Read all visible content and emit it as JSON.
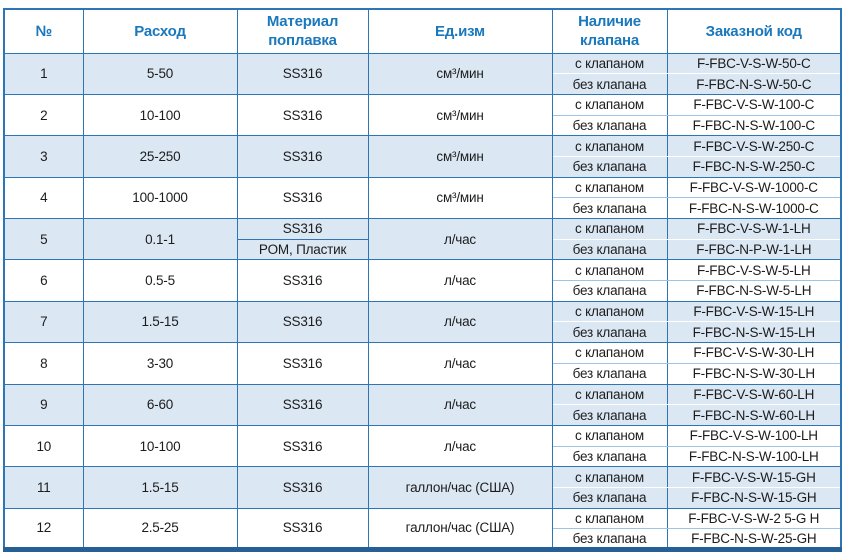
{
  "table": {
    "columns": [
      {
        "key": "num",
        "label": "№"
      },
      {
        "key": "flow",
        "label": "Расход"
      },
      {
        "key": "material",
        "label": "Материал поплавка"
      },
      {
        "key": "unit",
        "label": "Ед.изм"
      },
      {
        "key": "valve",
        "label": "Наличие клапана"
      },
      {
        "key": "code",
        "label": "Заказной код"
      }
    ],
    "rows": [
      {
        "num": "1",
        "flow": "5-50",
        "materials": [
          "SS316"
        ],
        "unit": "см³/мин",
        "variants": [
          {
            "valve": "с клапаном",
            "code": "F-FBC-V-S-W-50-C"
          },
          {
            "valve": "без клапана",
            "code": "F-FBC-N-S-W-50-C"
          }
        ]
      },
      {
        "num": "2",
        "flow": "10-100",
        "materials": [
          "SS316"
        ],
        "unit": "см³/мин",
        "variants": [
          {
            "valve": "с клапаном",
            "code": "F-FBC-V-S-W-100-C"
          },
          {
            "valve": "без клапана",
            "code": "F-FBC-N-S-W-100-C"
          }
        ]
      },
      {
        "num": "3",
        "flow": "25-250",
        "materials": [
          "SS316"
        ],
        "unit": "см³/мин",
        "variants": [
          {
            "valve": "с клапаном",
            "code": "F-FBC-V-S-W-250-C"
          },
          {
            "valve": "без клапана",
            "code": "F-FBC-N-S-W-250-C"
          }
        ]
      },
      {
        "num": "4",
        "flow": "100-1000",
        "materials": [
          "SS316"
        ],
        "unit": "см³/мин",
        "variants": [
          {
            "valve": "с клапаном",
            "code": "F-FBC-V-S-W-1000-C"
          },
          {
            "valve": "без клапана",
            "code": "F-FBC-N-S-W-1000-C"
          }
        ]
      },
      {
        "num": "5",
        "flow": "0.1-1",
        "materials": [
          "SS316",
          "POM, Пластик"
        ],
        "unit": "л/час",
        "variants": [
          {
            "valve": "с клапаном",
            "code": "F-FBC-V-S-W-1-LH"
          },
          {
            "valve": "без клапана",
            "code": "F-FBC-N-P-W-1-LH"
          }
        ]
      },
      {
        "num": "6",
        "flow": "0.5-5",
        "materials": [
          "SS316"
        ],
        "unit": "л/час",
        "variants": [
          {
            "valve": "с клапаном",
            "code": "F-FBC-V-S-W-5-LH"
          },
          {
            "valve": "без клапана",
            "code": "F-FBC-N-S-W-5-LH"
          }
        ]
      },
      {
        "num": "7",
        "flow": "1.5-15",
        "materials": [
          "SS316"
        ],
        "unit": "л/час",
        "variants": [
          {
            "valve": "с клапаном",
            "code": "F-FBC-V-S-W-15-LH"
          },
          {
            "valve": "без клапана",
            "code": "F-FBC-N-S-W-15-LH"
          }
        ]
      },
      {
        "num": "8",
        "flow": "3-30",
        "materials": [
          "SS316"
        ],
        "unit": "л/час",
        "variants": [
          {
            "valve": "с клапаном",
            "code": "F-FBC-V-S-W-30-LH"
          },
          {
            "valve": "без клапана",
            "code": "F-FBC-N-S-W-30-LH"
          }
        ]
      },
      {
        "num": "9",
        "flow": "6-60",
        "materials": [
          "SS316"
        ],
        "unit": "л/час",
        "variants": [
          {
            "valve": "с клапаном",
            "code": "F-FBC-V-S-W-60-LH"
          },
          {
            "valve": "без клапана",
            "code": "F-FBC-N-S-W-60-LH"
          }
        ]
      },
      {
        "num": "10",
        "flow": "10-100",
        "materials": [
          "SS316"
        ],
        "unit": "л/час",
        "variants": [
          {
            "valve": "с клапаном",
            "code": "F-FBC-V-S-W-100-LH"
          },
          {
            "valve": "без клапана",
            "code": "F-FBC-N-S-W-100-LH"
          }
        ]
      },
      {
        "num": "11",
        "flow": "1.5-15",
        "materials": [
          "SS316"
        ],
        "unit": "галлон/час (США)",
        "variants": [
          {
            "valve": "с клапаном",
            "code": "F-FBC-V-S-W-15-GH"
          },
          {
            "valve": "без клапана",
            "code": "F-FBC-N-S-W-15-GH"
          }
        ]
      },
      {
        "num": "12",
        "flow": "2.5-25",
        "materials": [
          "SS316"
        ],
        "unit": "галлон/час (США)",
        "variants": [
          {
            "valve": "с клапаном",
            "code": "F-FBC-V-S-W-2 5-G H"
          },
          {
            "valve": "без клапана",
            "code": "F-FBC-N-S-W-25-GH"
          }
        ]
      }
    ]
  },
  "colors": {
    "border_blue": "#2e75b6",
    "header_text": "#1a78bd",
    "row_shade": "#dbe7f3",
    "sub_divider_light": "#9dc3e6",
    "bottom_bar": "#265f94",
    "body_text": "#1c1c1c"
  }
}
